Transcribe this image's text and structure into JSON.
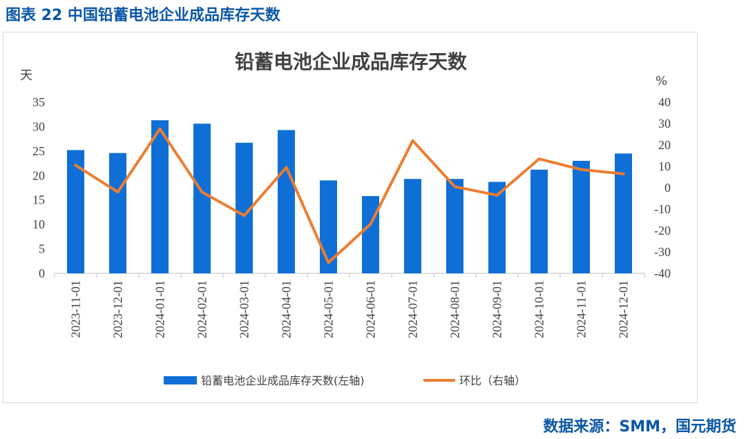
{
  "figure": {
    "caption": "图表 22 中国铅蓄电池企业成品库存天数",
    "source": "数据来源：SMM，国元期货"
  },
  "chart_data": {
    "type": "bar",
    "title": "铅蓄电池企业成品库存天数",
    "left_unit": "天",
    "right_unit": "%",
    "categories": [
      "2023-11-01",
      "2023-12-01",
      "2024-01-01",
      "2024-02-01",
      "2024-03-01",
      "2024-04-01",
      "2024-05-01",
      "2024-06-01",
      "2024-07-01",
      "2024-08-01",
      "2024-09-01",
      "2024-10-01",
      "2024-11-01",
      "2024-12-01"
    ],
    "y_left": {
      "range": [
        0,
        35
      ],
      "ticks": [
        "0",
        "5",
        "10",
        "15",
        "20",
        "25",
        "30",
        "35"
      ]
    },
    "y_right": {
      "range": [
        -40,
        40
      ],
      "ticks": [
        "-40",
        "-30",
        "-20",
        "-10",
        "0",
        "10",
        "20",
        "30",
        "40"
      ]
    },
    "series": [
      {
        "name": "铅蓄电池企业成品库存天数(左轴)",
        "type": "bar",
        "axis": "left",
        "color": "#0f6fd6",
        "values": [
          25.2,
          24.6,
          31.3,
          30.6,
          26.7,
          29.3,
          19.0,
          15.8,
          19.3,
          19.3,
          18.7,
          21.2,
          23.0,
          24.5
        ]
      },
      {
        "name": "环比（右轴）",
        "type": "line",
        "axis": "right",
        "color": "#ed7d31",
        "values": [
          10.5,
          -2.0,
          27.5,
          -2.0,
          -13.0,
          9.5,
          -35.0,
          -17.0,
          22.0,
          0.5,
          -3.5,
          13.5,
          8.5,
          6.5
        ]
      }
    ],
    "legend_position": "bottom",
    "grid": false
  }
}
